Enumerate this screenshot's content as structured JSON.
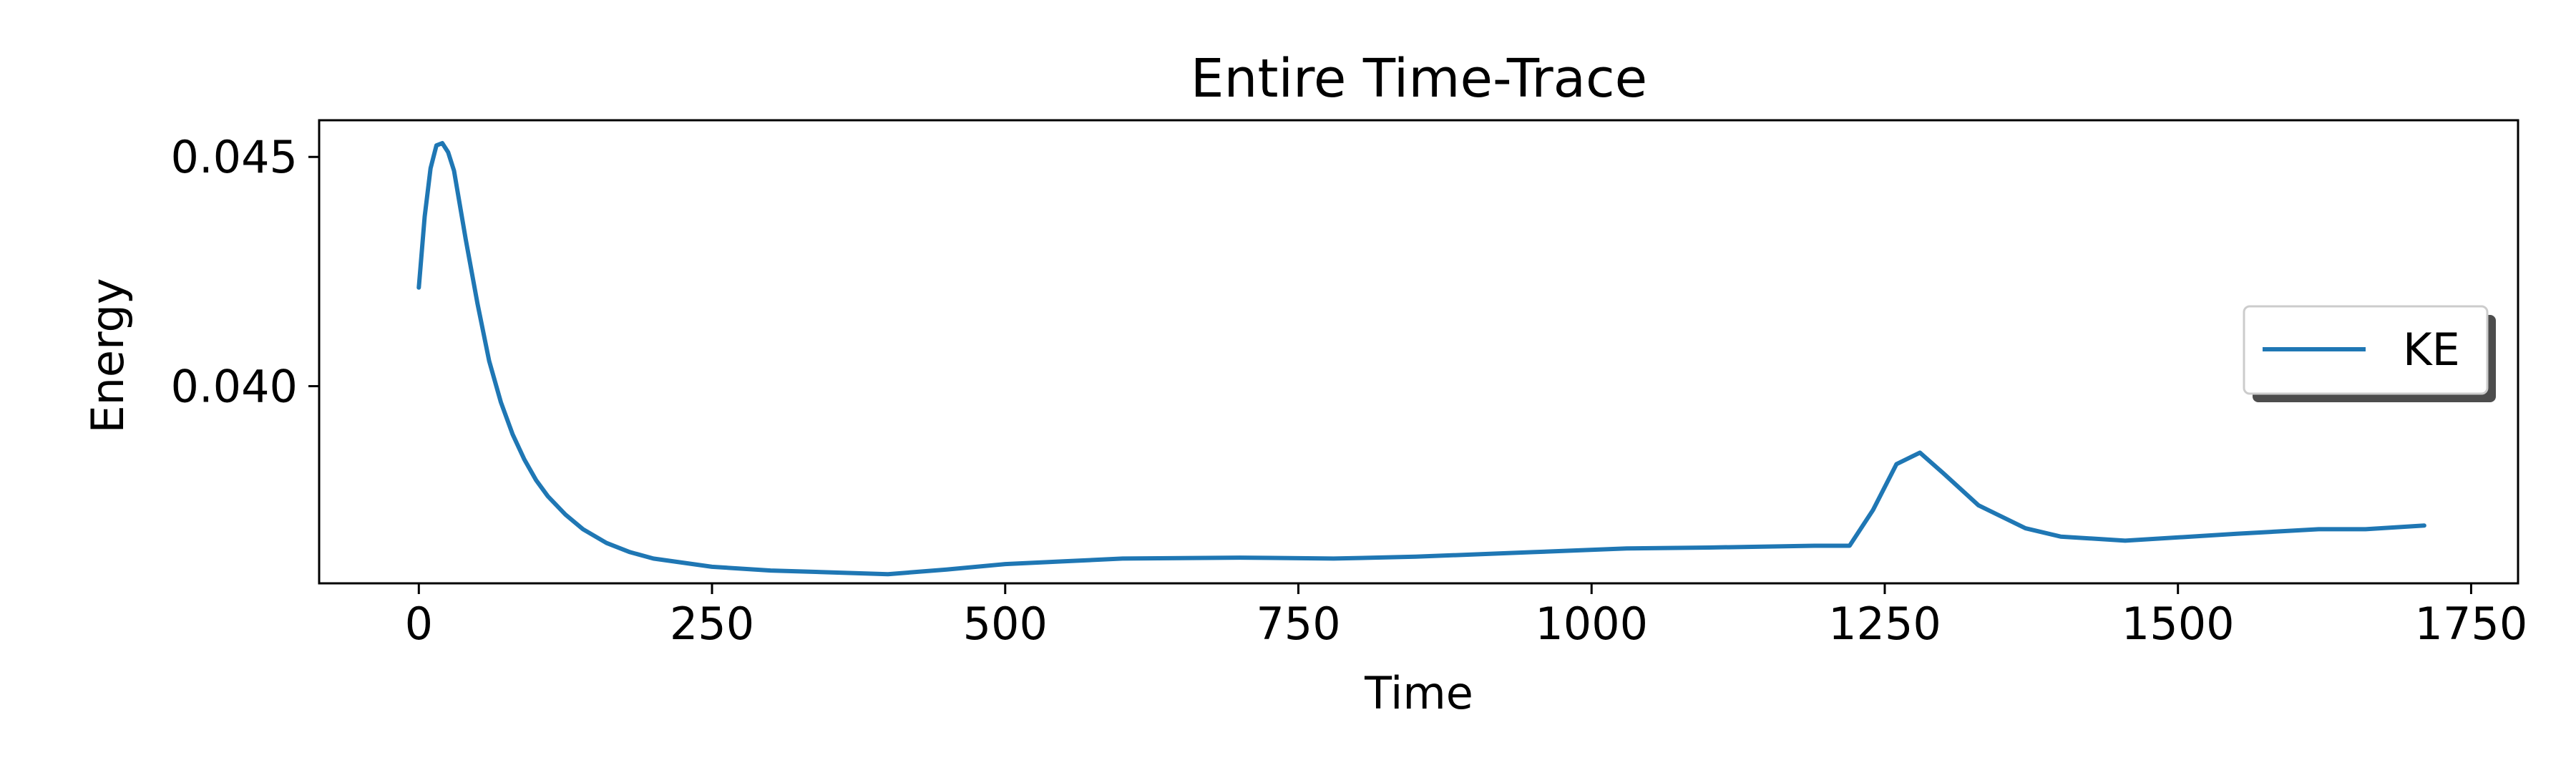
{
  "chart_data": {
    "type": "line",
    "title": "Entire Time-Trace",
    "xlabel": "Time",
    "ylabel": "Energy",
    "xlim": [
      -85,
      1790
    ],
    "ylim": [
      0.0357,
      0.0458
    ],
    "xticks": [
      0,
      250,
      500,
      750,
      1000,
      1250,
      1500,
      1750
    ],
    "xtick_labels": [
      "0",
      "250",
      "500",
      "750",
      "1000",
      "1250",
      "1500",
      "1750"
    ],
    "yticks": [
      0.04,
      0.045
    ],
    "ytick_labels": [
      "0.040",
      "0.045"
    ],
    "grid": false,
    "legend": {
      "placement": "center-right",
      "shadow": true
    },
    "series": [
      {
        "name": "KE",
        "color": "#1f77b4",
        "points": [
          [
            0,
            0.04215
          ],
          [
            5,
            0.0437
          ],
          [
            10,
            0.04475
          ],
          [
            15,
            0.04525
          ],
          [
            20,
            0.0453
          ],
          [
            25,
            0.0451
          ],
          [
            30,
            0.0447
          ],
          [
            40,
            0.0432
          ],
          [
            50,
            0.0418
          ],
          [
            60,
            0.04055
          ],
          [
            70,
            0.03965
          ],
          [
            80,
            0.03895
          ],
          [
            90,
            0.0384
          ],
          [
            100,
            0.03795
          ],
          [
            110,
            0.0376
          ],
          [
            125,
            0.0372
          ],
          [
            140,
            0.03688
          ],
          [
            160,
            0.03658
          ],
          [
            180,
            0.03638
          ],
          [
            200,
            0.03624
          ],
          [
            250,
            0.03606
          ],
          [
            300,
            0.03598
          ],
          [
            400,
            0.0359
          ],
          [
            450,
            0.036
          ],
          [
            500,
            0.03612
          ],
          [
            550,
            0.03618
          ],
          [
            600,
            0.03624
          ],
          [
            700,
            0.03626
          ],
          [
            780,
            0.03624
          ],
          [
            850,
            0.03628
          ],
          [
            950,
            0.03638
          ],
          [
            1030,
            0.03646
          ],
          [
            1100,
            0.03648
          ],
          [
            1190,
            0.03652
          ],
          [
            1220,
            0.03652
          ],
          [
            1240,
            0.0373
          ],
          [
            1260,
            0.0383
          ],
          [
            1280,
            0.03855
          ],
          [
            1300,
            0.0381
          ],
          [
            1330,
            0.0374
          ],
          [
            1370,
            0.0369
          ],
          [
            1400,
            0.03672
          ],
          [
            1455,
            0.03663
          ],
          [
            1550,
            0.03678
          ],
          [
            1620,
            0.03688
          ],
          [
            1660,
            0.03688
          ],
          [
            1710,
            0.03696
          ]
        ]
      }
    ]
  }
}
